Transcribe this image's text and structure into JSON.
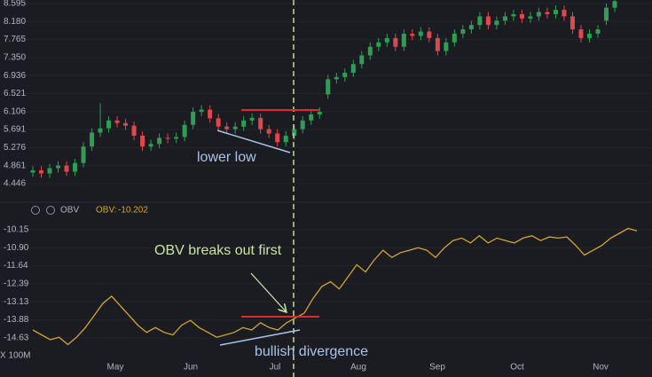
{
  "chart_data": [
    {
      "type": "candlestick",
      "ylim": [
        4.077,
        8.677
      ],
      "yticks": [
        8.595,
        {
          "value": 8.18,
          "label": "8.180"
        },
        7.765,
        {
          "value": 7.35,
          "label": "7.350"
        },
        6.936,
        6.521,
        6.106,
        5.691,
        5.276,
        4.861,
        4.446
      ],
      "up_color": "#2f9e55",
      "down_color": "#e0474c",
      "open": [
        4.7,
        4.75,
        4.68,
        4.8,
        4.86,
        4.72,
        4.92,
        5.3,
        5.62,
        5.72,
        5.9,
        5.84,
        5.78,
        5.55,
        5.3,
        5.36,
        5.5,
        5.48,
        5.52,
        5.8,
        6.1,
        6.15,
        5.95,
        5.76,
        5.7,
        5.76,
        5.9,
        5.96,
        5.7,
        5.6,
        5.4,
        5.55,
        5.7,
        5.9,
        6.04,
        6.5,
        6.85,
        6.9,
        7.0,
        7.2,
        7.4,
        7.6,
        7.7,
        7.8,
        7.6,
        7.9,
        7.85,
        7.95,
        7.8,
        7.5,
        7.7,
        7.9,
        8.0,
        8.1,
        8.3,
        8.1,
        8.2,
        8.3,
        8.35,
        8.25,
        8.3,
        8.4,
        8.35,
        8.45,
        8.3,
        8.0,
        7.8,
        7.9,
        8.2,
        8.5
      ],
      "high": [
        4.85,
        4.85,
        4.9,
        4.96,
        4.96,
        5.02,
        5.4,
        5.72,
        6.3,
        6.0,
        6.0,
        5.94,
        5.88,
        5.65,
        5.46,
        5.6,
        5.6,
        5.62,
        5.9,
        6.2,
        6.25,
        6.25,
        6.05,
        5.86,
        5.86,
        6.0,
        6.06,
        6.06,
        5.8,
        5.7,
        5.65,
        5.8,
        6.0,
        6.14,
        6.2,
        6.95,
        7.0,
        7.1,
        7.3,
        7.5,
        7.7,
        7.8,
        7.9,
        7.9,
        8.0,
        8.0,
        8.05,
        8.05,
        7.9,
        7.8,
        8.0,
        8.1,
        8.2,
        8.4,
        8.4,
        8.3,
        8.4,
        8.45,
        8.45,
        8.4,
        8.5,
        8.5,
        8.55,
        8.55,
        8.4,
        8.1,
        8.0,
        8.1,
        8.6,
        8.75
      ],
      "low": [
        4.6,
        4.58,
        4.58,
        4.7,
        4.62,
        4.62,
        4.82,
        5.2,
        5.52,
        5.62,
        5.74,
        5.68,
        5.45,
        5.2,
        5.2,
        5.26,
        5.38,
        5.38,
        5.42,
        5.7,
        6.0,
        5.85,
        5.66,
        5.6,
        5.6,
        5.66,
        5.8,
        5.6,
        5.5,
        5.3,
        5.3,
        5.45,
        5.6,
        5.8,
        5.94,
        6.4,
        6.75,
        6.8,
        6.9,
        7.1,
        7.3,
        7.5,
        7.6,
        7.5,
        7.5,
        7.75,
        7.75,
        7.7,
        7.4,
        7.4,
        7.6,
        7.8,
        7.9,
        8.0,
        8.0,
        8.0,
        8.1,
        8.2,
        8.15,
        8.15,
        8.2,
        8.25,
        8.25,
        8.2,
        7.9,
        7.7,
        7.7,
        7.8,
        8.1,
        8.4
      ],
      "close": [
        4.75,
        4.68,
        4.8,
        4.86,
        4.72,
        4.92,
        5.3,
        5.62,
        5.72,
        5.9,
        5.84,
        5.78,
        5.55,
        5.3,
        5.36,
        5.5,
        5.48,
        5.52,
        5.8,
        6.1,
        6.15,
        5.95,
        5.76,
        5.7,
        5.76,
        5.9,
        5.96,
        5.7,
        5.6,
        5.4,
        5.55,
        5.7,
        5.9,
        6.04,
        6.1,
        6.85,
        6.9,
        7.0,
        7.2,
        7.4,
        7.6,
        7.7,
        7.8,
        7.6,
        7.9,
        7.85,
        7.95,
        7.8,
        7.5,
        7.7,
        7.9,
        8.0,
        8.1,
        8.3,
        8.1,
        8.2,
        8.3,
        8.35,
        8.25,
        8.3,
        8.4,
        8.35,
        8.45,
        8.3,
        8.0,
        7.8,
        7.9,
        8.0,
        8.5,
        8.65
      ],
      "annotation": "lower low"
    },
    {
      "type": "line",
      "indicator": "OBV",
      "value_caption": "OBV:",
      "current_value": -10.202,
      "y_unit": "X 100M",
      "ylim": [
        -15.51,
        -9.64
      ],
      "yticks": [
        -10.15,
        {
          "value": -10.9,
          "label": "-10.90"
        },
        -11.64,
        -12.39,
        -13.13,
        -13.88,
        -14.63
      ],
      "color": "#d4a52a",
      "values": [
        -14.3,
        -14.5,
        -14.7,
        -14.6,
        -14.9,
        -14.6,
        -14.2,
        -13.7,
        -13.2,
        -12.9,
        -13.3,
        -13.7,
        -14.1,
        -14.4,
        -14.2,
        -14.4,
        -14.5,
        -14.1,
        -13.9,
        -14.2,
        -14.4,
        -14.6,
        -14.5,
        -14.4,
        -14.2,
        -14.3,
        -14.0,
        -14.2,
        -14.3,
        -14.0,
        -13.8,
        -13.6,
        -13.0,
        -12.5,
        -12.3,
        -12.6,
        -12.1,
        -11.6,
        -11.9,
        -11.4,
        -11.0,
        -11.3,
        -11.1,
        -11.0,
        -10.9,
        -11.0,
        -11.3,
        -10.9,
        -10.6,
        -10.5,
        -10.7,
        -10.4,
        -10.7,
        -10.5,
        -10.6,
        -10.7,
        -10.5,
        -10.4,
        -10.6,
        -10.45,
        -10.5,
        -10.45,
        -10.8,
        -11.2,
        -11.0,
        -10.8,
        -10.5,
        -10.3,
        -10.1,
        -10.2
      ],
      "x_labels": [
        "May",
        "Jun",
        "Jul",
        "Aug",
        "Sep",
        "Oct",
        "Nov"
      ],
      "annotations": [
        "OBV breaks out first",
        "bullish divergence"
      ]
    }
  ]
}
